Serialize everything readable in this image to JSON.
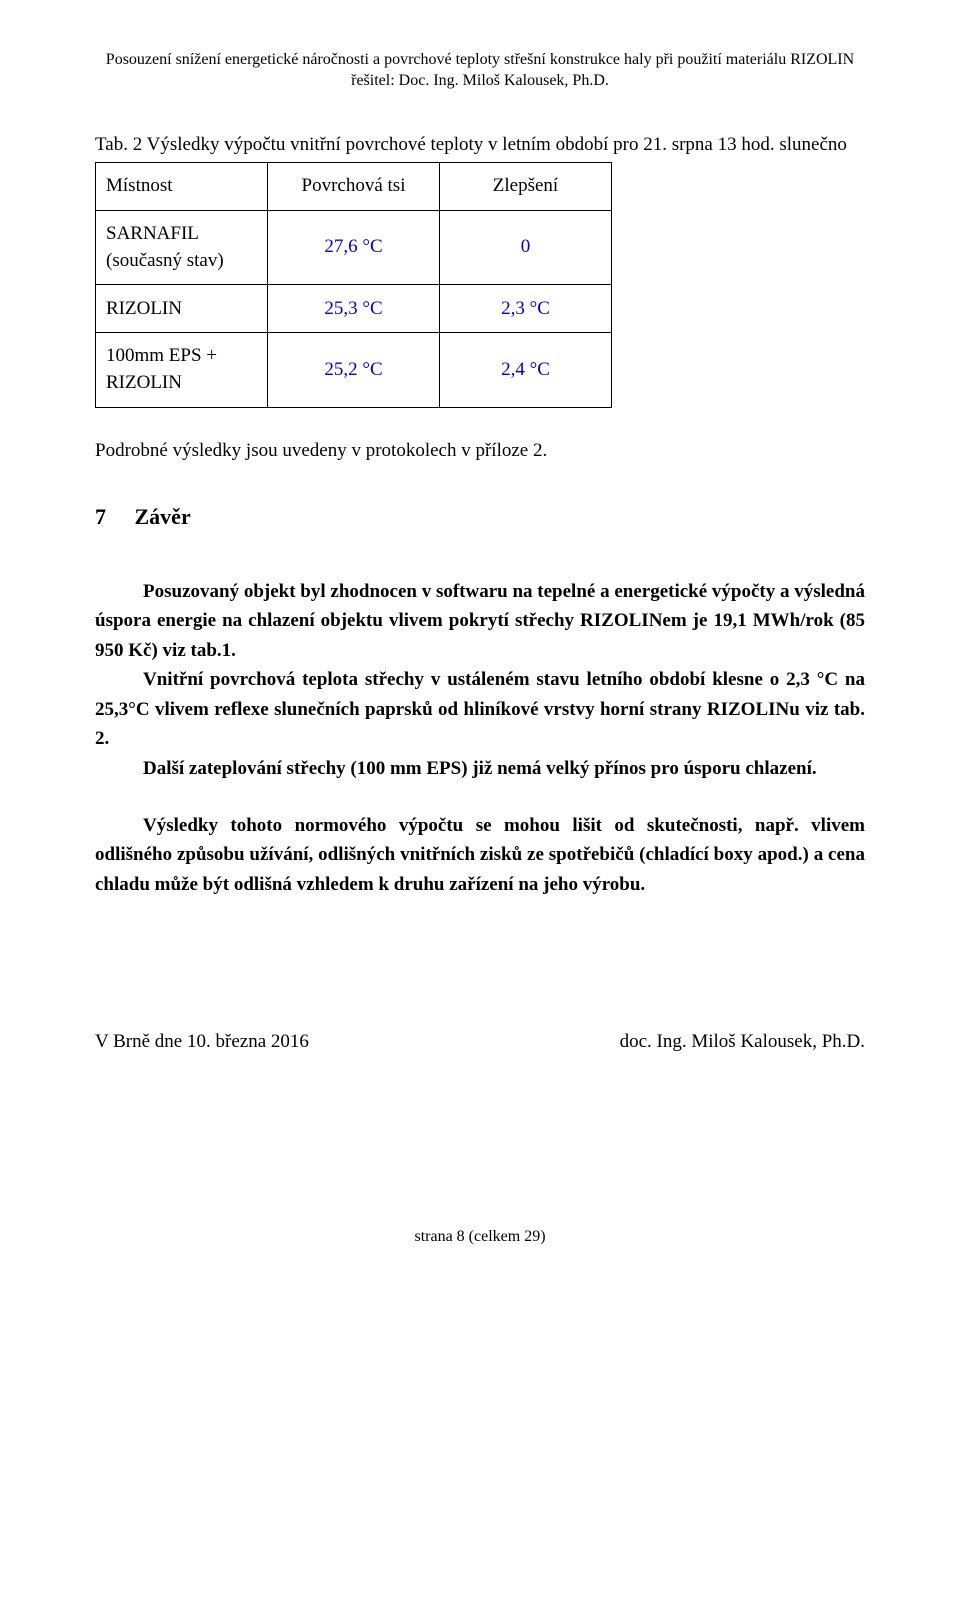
{
  "header": {
    "line1": "Posouzení snížení energetické náročnosti a povrchové teploty střešní konstrukce haly při použití materiálu RIZOLIN",
    "line2": "řešitel: Doc. Ing. Miloš Kalousek, Ph.D."
  },
  "table": {
    "caption_prefix": "Tab. 2 Výsledky výpočtu vnitřní povrchové teploty v letním období pro 21. srpna 13 hod. slunečno",
    "head": {
      "c1": "Místnost",
      "c2": "Povrchová tsi",
      "c3": "Zlepšení"
    },
    "rows": [
      {
        "c1a": "SARNAFIL",
        "c1b": "(současný stav)",
        "c2": "27,6 °C",
        "c3": "0"
      },
      {
        "c1": "RIZOLIN",
        "c2": "25,3 °C",
        "c3": "2,3 °C"
      },
      {
        "c1a": "100mm EPS +",
        "c1b": "RIZOLIN",
        "c2": "25,2 °C",
        "c3": "2,4 °C"
      }
    ],
    "colors": {
      "value": "#0000cc"
    }
  },
  "protocol_note": "Podrobné výsledky jsou uvedeny v protokolech v příloze 2.",
  "section": {
    "num": "7",
    "title": "Závěr"
  },
  "para1": "Posuzovaný objekt byl zhodnocen v softwaru na tepelné a energetické výpočty a výsledná úspora energie na chlazení objektu vlivem pokrytí střechy RIZOLINem je 19,1 MWh/rok (85 950 Kč) viz tab.1.",
  "para2": "Vnitřní povrchová teplota střechy v ustáleném stavu letního období klesne o 2,3 °C na 25,3°C vlivem reflexe slunečních paprsků od hliníkové vrstvy horní strany RIZOLINu viz tab. 2.",
  "para3": "Další zateplování střechy (100 mm EPS) již nemá velký přínos pro úsporu chlazení.",
  "para4": "Výsledky tohoto normového výpočtu se mohou lišit od skutečnosti, např. vlivem odlišného způsobu užívání, odlišných vnitřních zisků ze spotřebičů (chladící boxy apod.) a cena chladu může být odlišná vzhledem k druhu zařízení na jeho výrobu.",
  "signature": {
    "left": "V Brně dne 10. března 2016",
    "right": "doc. Ing. Miloš Kalousek, Ph.D."
  },
  "footer": "strana 8 (celkem 29)"
}
